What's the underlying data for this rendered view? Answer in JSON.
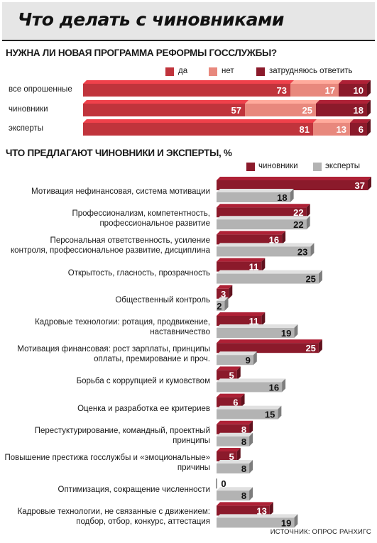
{
  "title": "Что делать с чиновниками",
  "source": "ИСТОЧНИК: ОПРОС РАНХИГС",
  "colors": {
    "dark_red": "#8b1a2b",
    "red": "#c0343c",
    "salmon": "#e8887d",
    "gray": "#b3b3b3",
    "title_bg": "#e6e6e6"
  },
  "chart_data": [
    {
      "type": "bar",
      "stacked": true,
      "orientation": "horizontal",
      "title": "НУЖНА ЛИ НОВАЯ ПРОГРАММА РЕФОРМЫ ГОССЛУЖБЫ?",
      "categories": [
        "все опрошенные",
        "чиновники",
        "эксперты"
      ],
      "series": [
        {
          "name": "да",
          "values": [
            73,
            57,
            81
          ]
        },
        {
          "name": "нет",
          "values": [
            17,
            25,
            13
          ]
        },
        {
          "name": "затрудняюсь ответить",
          "values": [
            10,
            18,
            6
          ]
        }
      ],
      "xlim": [
        0,
        100
      ],
      "legend": "top-right"
    },
    {
      "type": "bar",
      "orientation": "horizontal",
      "title": "ЧТО ПРЕДЛАГАЮТ ЧИНОВНИКИ И ЭКСПЕРТЫ, %",
      "categories": [
        "Мотивация нефинансовая, система мотивации",
        "Профессионализм, компетентность,\nпрофессиональное развитие",
        "Персональная ответственность, усиление\nконтроля, профессиональное развитие, дисциплина",
        "Открытость, гласность, прозрачность",
        "Общественный контроль",
        "Кадровые технологии: ротация, продвижение,\nнаставничество",
        "Мотивация финансовая: рост зарплаты, принципы\nоплаты, премирование и проч.",
        "Борьба с коррупцией и кумовством",
        "Оценка и разработка ее критериев",
        "Перестуктурирование, командный, проектный\nпринципы",
        "Повышение престижа госслужбы и «эмоциональные»\nпричины",
        "Оптимизация, сокращение численности",
        "Кадровые технологии, не связанные с движением:\nподбор, отбор, конкурс, аттестация"
      ],
      "series": [
        {
          "name": "чиновники",
          "values": [
            37,
            22,
            16,
            11,
            3,
            11,
            25,
            5,
            6,
            8,
            5,
            0,
            13
          ]
        },
        {
          "name": "эксперты",
          "values": [
            18,
            22,
            23,
            25,
            2,
            19,
            9,
            16,
            15,
            8,
            8,
            8,
            19
          ]
        }
      ],
      "xlim": [
        0,
        37
      ],
      "legend": "top-right"
    }
  ]
}
